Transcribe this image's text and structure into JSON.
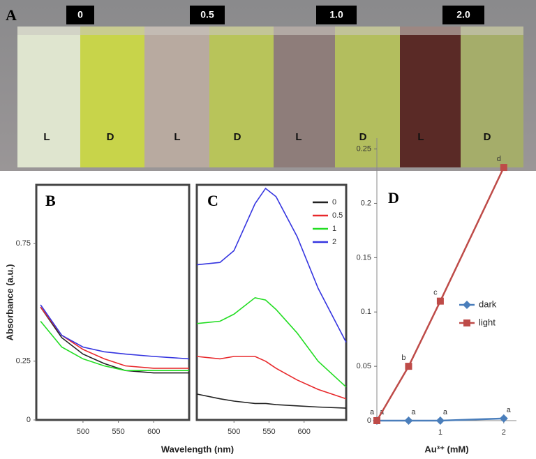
{
  "photo": {
    "panel_label": "A",
    "concentrations": [
      "0",
      "0.5",
      "1.0",
      "2.0"
    ],
    "vial_labels": [
      "L",
      "D",
      "L",
      "D",
      "L",
      "D",
      "L",
      "D"
    ]
  },
  "chart_data": [
    {
      "type": "line",
      "panel_label": "B",
      "y_label": "Absorbance (a.u.)",
      "x_label": "Wavelength (nm)",
      "x": [
        440,
        470,
        500,
        530,
        560,
        600,
        650
      ],
      "xlim": [
        434,
        650
      ],
      "xticks": [
        500,
        550,
        600
      ],
      "ylim": [
        0,
        1.0
      ],
      "yticks": [
        0,
        0.25,
        0.75
      ],
      "series": [
        {
          "color": "#222222",
          "values": [
            0.48,
            0.35,
            0.28,
            0.24,
            0.21,
            0.2,
            0.2
          ]
        },
        {
          "color": "#e8282b",
          "values": [
            0.48,
            0.36,
            0.3,
            0.26,
            0.23,
            0.22,
            0.22
          ]
        },
        {
          "color": "#22dd22",
          "values": [
            0.42,
            0.31,
            0.26,
            0.23,
            0.21,
            0.21,
            0.21
          ]
        },
        {
          "color": "#3535e0",
          "values": [
            0.49,
            0.36,
            0.31,
            0.29,
            0.28,
            0.27,
            0.26
          ]
        }
      ]
    },
    {
      "type": "line",
      "panel_label": "C",
      "x": [
        447,
        480,
        500,
        530,
        545,
        560,
        590,
        620,
        660
      ],
      "xlim": [
        447,
        660
      ],
      "xticks": [
        500,
        550,
        600
      ],
      "ylim": [
        0,
        1.0
      ],
      "series": [
        {
          "name": "0",
          "color": "#222222",
          "values": [
            0.11,
            0.09,
            0.08,
            0.07,
            0.07,
            0.065,
            0.06,
            0.055,
            0.05
          ]
        },
        {
          "name": "0.5",
          "color": "#e8282b",
          "values": [
            0.27,
            0.26,
            0.27,
            0.27,
            0.25,
            0.22,
            0.17,
            0.13,
            0.09
          ]
        },
        {
          "name": "1",
          "color": "#22dd22",
          "values": [
            0.41,
            0.42,
            0.45,
            0.52,
            0.51,
            0.47,
            0.37,
            0.25,
            0.14
          ]
        },
        {
          "name": "2",
          "color": "#3535e0",
          "values": [
            0.66,
            0.67,
            0.72,
            0.92,
            0.985,
            0.95,
            0.78,
            0.56,
            0.33
          ]
        }
      ]
    },
    {
      "type": "line",
      "panel_label": "D",
      "x_label": "Au³⁺ (mM)",
      "x": [
        0,
        0.5,
        1,
        2
      ],
      "xlim": [
        0,
        2.2
      ],
      "xticks": [
        1,
        2
      ],
      "ylim": [
        0,
        0.26
      ],
      "yticks": [
        0,
        0.05,
        0.1,
        0.15,
        0.2,
        0.25
      ],
      "series": [
        {
          "name": "dark",
          "color": "#4a7ebb",
          "marker": "diamond",
          "values": [
            0,
            0,
            0,
            0.002
          ],
          "point_labels": [
            "a",
            "a",
            "a",
            "a"
          ]
        },
        {
          "name": "light",
          "color": "#be4b48",
          "marker": "square",
          "values": [
            0,
            0.05,
            0.11,
            0.233
          ],
          "point_labels": [
            "a",
            "b",
            "c",
            "d"
          ]
        }
      ]
    }
  ]
}
